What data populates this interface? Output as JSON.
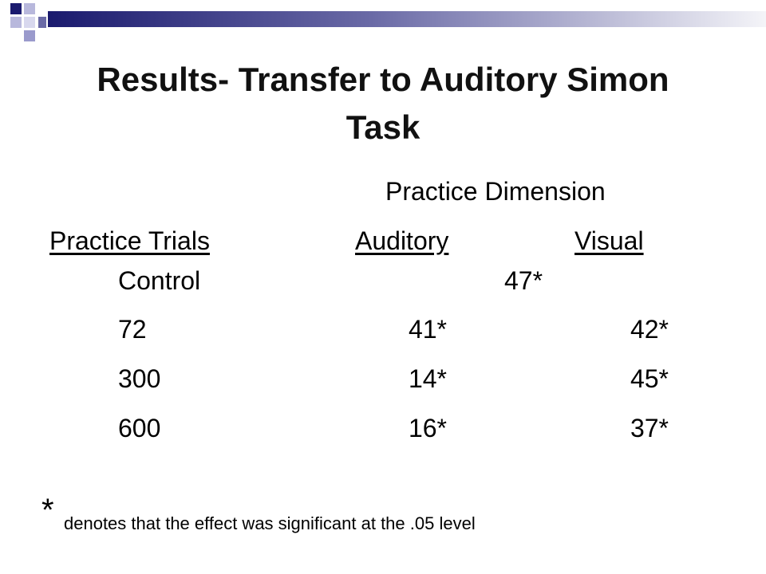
{
  "title": "Results- Transfer to Auditory Simon Task",
  "table": {
    "group_header": "Practice Dimension",
    "columns": [
      "Practice Trials",
      "Auditory",
      "Visual"
    ],
    "control_row": {
      "label": "Control",
      "value": "47*"
    },
    "rows": [
      [
        "72",
        "41*",
        "42*"
      ],
      [
        "300",
        "14*",
        "45*"
      ],
      [
        "600",
        "16*",
        "37*"
      ]
    ]
  },
  "footnote": {
    "symbol": "*",
    "text": "denotes that the effect was significant at the .05 level"
  }
}
